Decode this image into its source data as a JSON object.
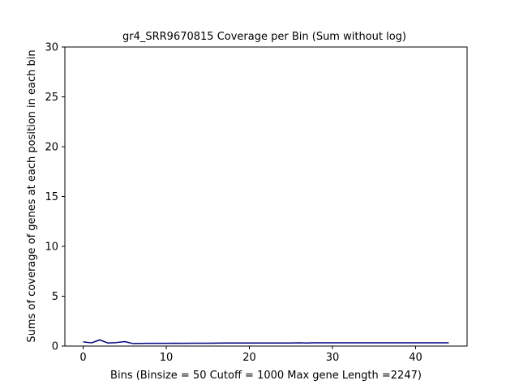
{
  "chart_data": {
    "type": "line",
    "title": "gr4_SRR9670815 Coverage per Bin (Sum without log)",
    "xlabel": "Bins  (Binsize = 50 Cutoff = 1000 Max gene Length =2247)",
    "ylabel": "Sums of coverage of genes at each position in each bin",
    "xlim": [
      -2.2,
      46.2
    ],
    "ylim": [
      0,
      30
    ],
    "xticks": [
      0,
      10,
      20,
      30,
      40
    ],
    "yticks": [
      0,
      5,
      10,
      15,
      20,
      25,
      30
    ],
    "grid": false,
    "series": [
      {
        "color": "#000080",
        "x": [
          0,
          1,
          2,
          3,
          4,
          5,
          6,
          7,
          8,
          9,
          10,
          11,
          12,
          13,
          14,
          15,
          16,
          17,
          18,
          19,
          20,
          21,
          22,
          23,
          24,
          25,
          26,
          27,
          28,
          29,
          30,
          31,
          32,
          33,
          34,
          35,
          36,
          37,
          38,
          39,
          40,
          41,
          42,
          43,
          44
        ],
        "y": [
          0.42,
          0.32,
          0.62,
          0.3,
          0.35,
          0.45,
          0.25,
          0.26,
          0.27,
          0.27,
          0.27,
          0.28,
          0.27,
          0.28,
          0.28,
          0.28,
          0.29,
          0.3,
          0.3,
          0.3,
          0.3,
          0.3,
          0.3,
          0.31,
          0.31,
          0.31,
          0.32,
          0.31,
          0.32,
          0.33,
          0.32,
          0.32,
          0.33,
          0.32,
          0.32,
          0.32,
          0.33,
          0.32,
          0.32,
          0.32,
          0.33,
          0.33,
          0.32,
          0.32,
          0.32
        ]
      }
    ]
  }
}
